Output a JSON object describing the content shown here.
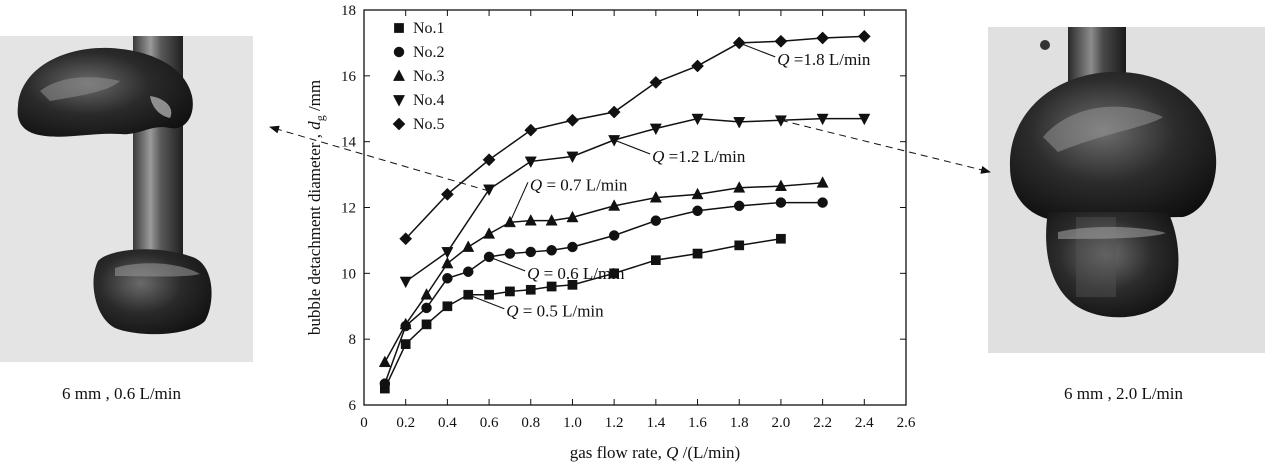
{
  "captions": {
    "left": "6 mm , 0.6 L/min",
    "right": "6 mm , 2.0 L/min"
  },
  "chart_data": {
    "type": "line",
    "xlabel_prefix": "gas flow rate,",
    "xlabel_var": "Q",
    "xlabel_unit": "/(L/min)",
    "ylabel_prefix": "bubble detachment diameter ,",
    "ylabel_var": "d",
    "ylabel_sub": "g",
    "ylabel_unit": "/mm",
    "xlim": [
      0,
      2.6
    ],
    "ylim": [
      6,
      18
    ],
    "xticks": [
      "0",
      "0.2",
      "0.4",
      "0.6",
      "0.8",
      "1.0",
      "1.2",
      "1.4",
      "1.6",
      "1.8",
      "2.0",
      "2.2",
      "2.4",
      "2.6"
    ],
    "yticks": [
      "6",
      "8",
      "10",
      "12",
      "14",
      "16",
      "18"
    ],
    "legend_position": "top-left",
    "series": [
      {
        "name": "No.1",
        "marker": "square",
        "x": [
          0.1,
          0.2,
          0.3,
          0.4,
          0.5,
          0.6,
          0.7,
          0.8,
          0.9,
          1.0,
          1.2,
          1.4,
          1.6,
          1.8,
          2.0
        ],
        "y": [
          6.5,
          7.85,
          8.45,
          9.0,
          9.35,
          9.35,
          9.45,
          9.5,
          9.6,
          9.65,
          10.0,
          10.4,
          10.6,
          10.85,
          11.05
        ]
      },
      {
        "name": "No.2",
        "marker": "circle",
        "x": [
          0.1,
          0.2,
          0.3,
          0.4,
          0.5,
          0.6,
          0.7,
          0.8,
          0.9,
          1.0,
          1.2,
          1.4,
          1.6,
          1.8,
          2.0,
          2.2
        ],
        "y": [
          6.65,
          8.4,
          8.95,
          9.85,
          10.05,
          10.5,
          10.6,
          10.65,
          10.7,
          10.8,
          11.15,
          11.6,
          11.9,
          12.05,
          12.15,
          12.15
        ]
      },
      {
        "name": "No.3",
        "marker": "triangle-up",
        "x": [
          0.1,
          0.2,
          0.3,
          0.4,
          0.5,
          0.6,
          0.7,
          0.8,
          0.9,
          1.0,
          1.2,
          1.4,
          1.6,
          1.8,
          2.0,
          2.2
        ],
        "y": [
          7.3,
          8.45,
          9.35,
          10.3,
          10.8,
          11.2,
          11.55,
          11.6,
          11.6,
          11.7,
          12.05,
          12.3,
          12.4,
          12.6,
          12.65,
          12.75
        ]
      },
      {
        "name": "No.4",
        "marker": "triangle-down",
        "x": [
          0.2,
          0.4,
          0.6,
          0.8,
          1.0,
          1.2,
          1.4,
          1.6,
          1.8,
          2.0,
          2.2,
          2.4
        ],
        "y": [
          9.75,
          10.65,
          12.55,
          13.4,
          13.55,
          14.05,
          14.4,
          14.7,
          14.6,
          14.65,
          14.7,
          14.7
        ]
      },
      {
        "name": "No.5",
        "marker": "diamond",
        "x": [
          0.2,
          0.4,
          0.6,
          0.8,
          1.0,
          1.2,
          1.4,
          1.6,
          1.8,
          2.0,
          2.2,
          2.4
        ],
        "y": [
          11.05,
          12.4,
          13.45,
          14.35,
          14.65,
          14.9,
          15.8,
          16.3,
          17.0,
          17.05,
          17.15,
          17.2
        ]
      }
    ],
    "annotations": [
      {
        "var": "Q",
        "text": "=1.8 L/min",
        "point": [
          1.8,
          17.0
        ],
        "dir": "below-right"
      },
      {
        "var": "Q",
        "text": "=1.2 L/min",
        "point": [
          1.2,
          14.05
        ],
        "dir": "below-right"
      },
      {
        "var": "Q",
        "text": "= 0.7 L/min",
        "point": [
          0.7,
          11.55
        ],
        "dir": "above-right"
      },
      {
        "var": "Q",
        "text": "= 0.6 L/min",
        "point": [
          0.6,
          10.5
        ],
        "dir": "below-right"
      },
      {
        "var": "Q",
        "text": "= 0.5 L/min",
        "point": [
          0.5,
          9.35
        ],
        "dir": "below-right"
      }
    ]
  }
}
